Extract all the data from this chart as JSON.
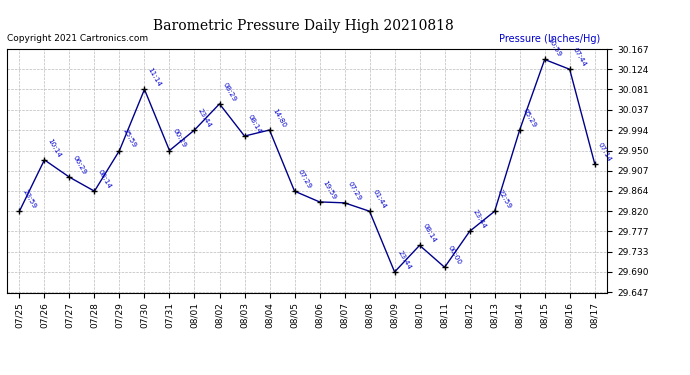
{
  "title": "Barometric Pressure Daily High 20210818",
  "ylabel": "Pressure (Inches/Hg)",
  "copyright": "Copyright 2021 Cartronics.com",
  "background_color": "#ffffff",
  "line_color": "#00008B",
  "annotation_color": "#0000CD",
  "ylim_min": 29.647,
  "ylim_max": 30.167,
  "yticks": [
    29.647,
    29.69,
    29.733,
    29.777,
    29.82,
    29.864,
    29.907,
    29.95,
    29.994,
    30.037,
    30.081,
    30.124,
    30.167
  ],
  "dates": [
    "07/25",
    "07/26",
    "07/27",
    "07/28",
    "07/29",
    "07/30",
    "07/31",
    "08/01",
    "08/02",
    "08/03",
    "08/04",
    "08/05",
    "08/06",
    "08/07",
    "08/08",
    "08/09",
    "08/10",
    "08/11",
    "08/12",
    "08/13",
    "08/14",
    "08/15",
    "08/16",
    "08/17"
  ],
  "values": [
    29.82,
    29.93,
    29.893,
    29.863,
    29.95,
    30.081,
    29.95,
    29.994,
    30.05,
    29.981,
    29.994,
    29.863,
    29.84,
    29.838,
    29.82,
    29.69,
    29.747,
    29.7,
    29.777,
    29.82,
    29.994,
    30.145,
    30.124,
    29.922
  ],
  "time_labels": [
    "23:59",
    "10:14",
    "06:29",
    "08:14",
    "25:59",
    "11:14",
    "00:29",
    "23:44",
    "08:29",
    "08:14",
    "14:80",
    "07:29",
    "19:59",
    "07:29",
    "01:44",
    "23:44",
    "08:14",
    "00:00",
    "23:44",
    "22:59",
    "05:29",
    "10:59",
    "07:44",
    "07:14"
  ]
}
